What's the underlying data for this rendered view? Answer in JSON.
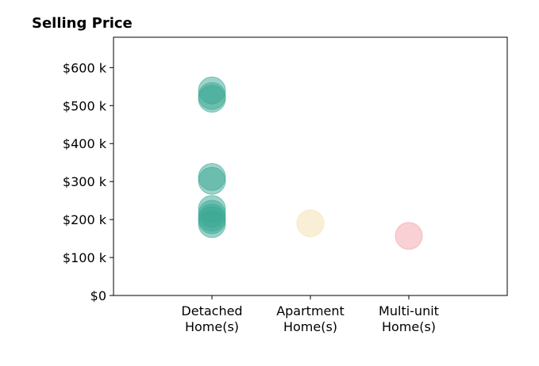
{
  "chart_data": {
    "type": "scatter",
    "title": "Selling Price",
    "xlabel": "",
    "ylabel": "",
    "categories": [
      [
        "Detached",
        "Home(s)"
      ],
      [
        "Apartment",
        "Home(s)"
      ],
      [
        "Multi-unit",
        "Home(s)"
      ]
    ],
    "xlim": [
      0,
      4
    ],
    "ylim": [
      0,
      680
    ],
    "yticks": [
      0,
      100,
      200,
      300,
      400,
      500,
      600
    ],
    "ytick_labels": [
      "$0",
      "$100 k",
      "$200 k",
      "$300 k",
      "$400 k",
      "$500 k",
      "$600 k"
    ],
    "grid": false,
    "series": [
      {
        "category": 1,
        "color": "#3aa894",
        "values": [
          540,
          525,
          518,
          312,
          302,
          228,
          215,
          205,
          198,
          188
        ]
      },
      {
        "category": 2,
        "color": "#f3dfb0",
        "values": [
          190
        ]
      },
      {
        "category": 3,
        "color": "#f4a1a8",
        "values": [
          157
        ]
      }
    ]
  }
}
